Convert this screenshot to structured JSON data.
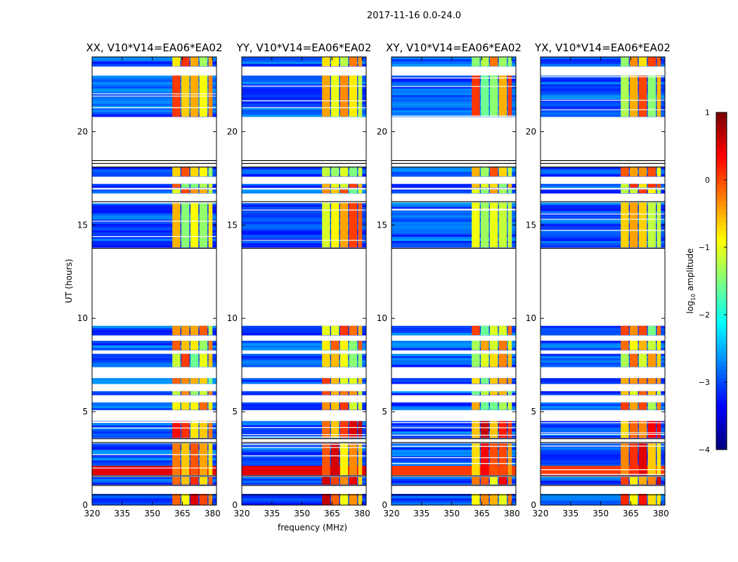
{
  "figure": {
    "suptitle": "2017-11-16 0.0-24.0",
    "colorbar_label": "log10 amplitude",
    "colorbar_label_base": "log",
    "colorbar_label_sub": "10",
    "colorbar_label_rest": " amplitude"
  },
  "chart_data": [
    {
      "type": "heatmap",
      "title": "XX, V10*V14=EA06*EA02",
      "polarization": "XX",
      "xlabel": "",
      "ylabel": "UT (hours)",
      "xlim": [
        320,
        382
      ],
      "ylim": [
        0,
        24
      ],
      "xticks": [
        320,
        335,
        350,
        365,
        380
      ],
      "yticks": [
        0,
        5,
        10,
        15,
        20
      ],
      "colorscale": "jet",
      "clim": [
        -4,
        1
      ]
    },
    {
      "type": "heatmap",
      "title": "YY, V10*V14=EA06*EA02",
      "polarization": "YY",
      "xlabel": "frequency (MHz)",
      "ylabel": "",
      "xlim": [
        320,
        382
      ],
      "ylim": [
        0,
        24
      ],
      "xticks": [
        320,
        335,
        350,
        365,
        380
      ],
      "yticks": [
        0,
        5,
        10,
        15,
        20
      ],
      "colorscale": "jet",
      "clim": [
        -4,
        1
      ]
    },
    {
      "type": "heatmap",
      "title": "XY, V10*V14=EA06*EA02",
      "polarization": "XY",
      "xlabel": "",
      "ylabel": "",
      "xlim": [
        320,
        382
      ],
      "ylim": [
        0,
        24
      ],
      "xticks": [
        320,
        335,
        350,
        365,
        380
      ],
      "yticks": [
        0,
        5,
        10,
        15,
        20
      ],
      "colorscale": "jet",
      "clim": [
        -4,
        1
      ]
    },
    {
      "type": "heatmap",
      "title": "YX, V10*V14=EA06*EA02",
      "polarization": "YX",
      "xlabel": "",
      "ylabel": "",
      "xlim": [
        320,
        382
      ],
      "ylim": [
        0,
        24
      ],
      "xticks": [
        320,
        335,
        350,
        365,
        380
      ],
      "yticks": [
        0,
        5,
        10,
        15,
        20
      ],
      "colorscale": "jet",
      "clim": [
        -4,
        1
      ]
    }
  ],
  "colorbar": {
    "range": [
      -4,
      1
    ],
    "ticks": [
      -4,
      -3,
      -2,
      -1,
      0,
      1
    ],
    "tick_labels": [
      "−4",
      "−3",
      "−2",
      "−1",
      "0",
      "1"
    ]
  }
}
